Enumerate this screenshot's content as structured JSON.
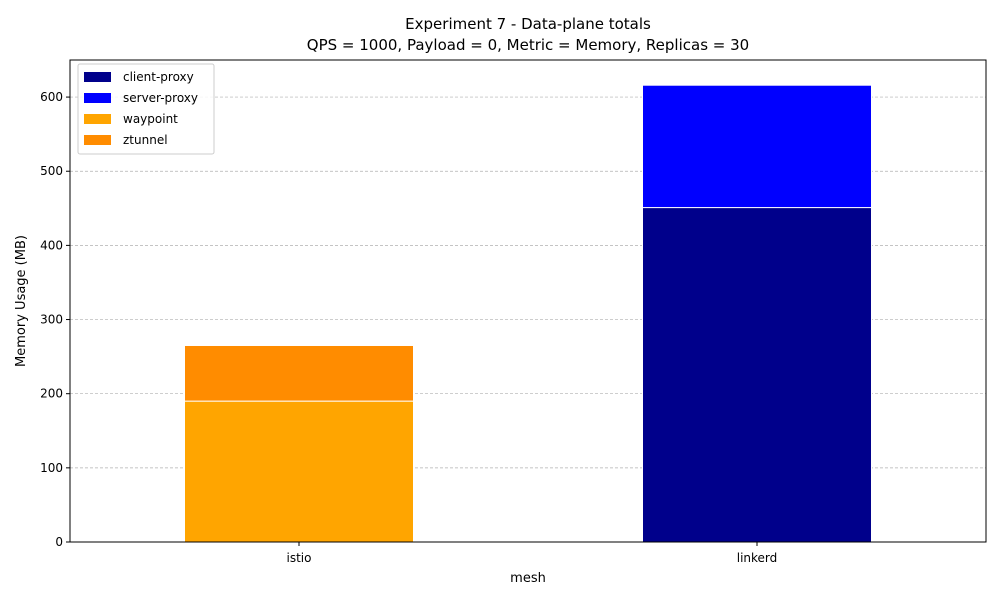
{
  "chart_data": {
    "type": "bar",
    "stacked": true,
    "title": "Experiment 7 - Data-plane totals",
    "subtitle": "QPS = 1000, Payload = 0, Metric = Memory, Replicas = 30",
    "xlabel": "mesh",
    "ylabel": "Memory Usage (MB)",
    "categories": [
      "istio",
      "linkerd"
    ],
    "ylim": [
      0,
      650
    ],
    "yticks": [
      0,
      100,
      200,
      300,
      400,
      500,
      600
    ],
    "grid": "y-dashed",
    "legend_position": "top-left",
    "series": [
      {
        "name": "client-proxy",
        "color": "#00008b",
        "values": [
          0,
          451
        ]
      },
      {
        "name": "server-proxy",
        "color": "#0000ff",
        "values": [
          0,
          165
        ]
      },
      {
        "name": "waypoint",
        "color": "#ffa500",
        "values": [
          190,
          0
        ]
      },
      {
        "name": "ztunnel",
        "color": "#ff8c00",
        "values": [
          75,
          0
        ]
      }
    ]
  }
}
